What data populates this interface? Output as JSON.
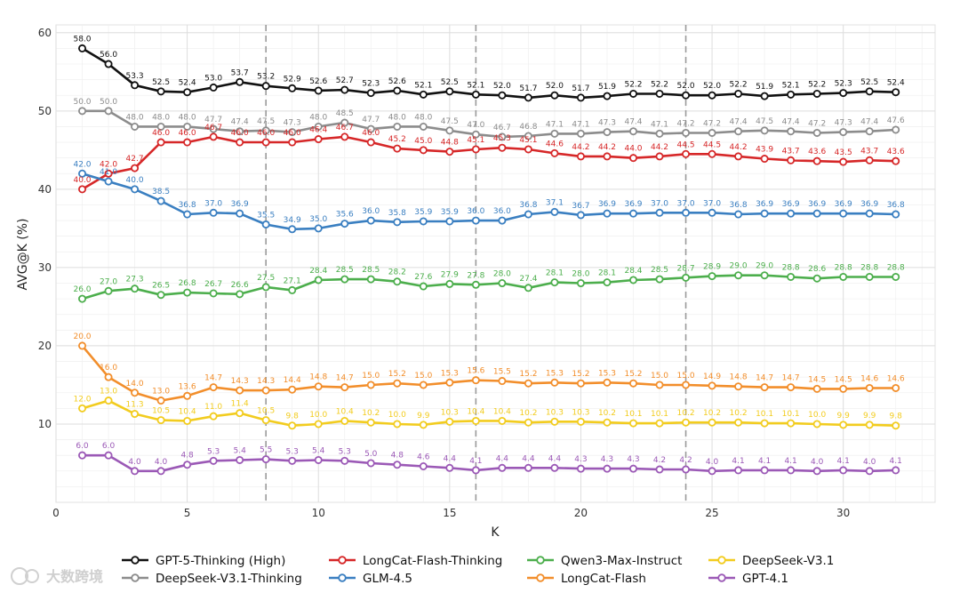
{
  "chart_data": {
    "type": "line",
    "title": "",
    "xlabel": "K",
    "ylabel": "AVG@K (%)",
    "xlim": [
      0,
      33.5
    ],
    "ylim": [
      0,
      61
    ],
    "xticks": [
      0,
      5,
      10,
      15,
      20,
      25,
      30
    ],
    "yticks": [
      10,
      20,
      30,
      40,
      50,
      60
    ],
    "vlines": [
      8,
      16,
      24
    ],
    "grid": true,
    "legend_position": "bottom",
    "x": [
      1,
      2,
      3,
      4,
      5,
      6,
      7,
      8,
      9,
      10,
      11,
      12,
      13,
      14,
      15,
      16,
      17,
      18,
      19,
      20,
      21,
      22,
      23,
      24,
      25,
      26,
      27,
      28,
      29,
      30,
      31,
      32
    ],
    "series": [
      {
        "name": "GPT-5-Thinking (High)",
        "color": "#111111",
        "values": [
          58.0,
          56.0,
          53.3,
          52.5,
          52.4,
          53.0,
          53.7,
          53.2,
          52.9,
          52.6,
          52.7,
          52.3,
          52.6,
          52.1,
          52.5,
          52.1,
          52.0,
          51.7,
          52.0,
          51.7,
          51.9,
          52.2,
          52.2,
          52.0,
          52.0,
          52.2,
          51.9,
          52.1,
          52.2,
          52.3,
          52.5,
          52.4
        ]
      },
      {
        "name": "DeepSeek-V3.1-Thinking",
        "color": "#8c8c8c",
        "values": [
          50.0,
          50.0,
          48.0,
          48.0,
          48.0,
          47.7,
          47.4,
          47.5,
          47.3,
          48.0,
          48.5,
          47.7,
          48.0,
          48.0,
          47.5,
          47.0,
          46.7,
          46.8,
          47.1,
          47.1,
          47.3,
          47.4,
          47.1,
          47.2,
          47.2,
          47.4,
          47.5,
          47.4,
          47.2,
          47.3,
          47.4,
          47.6
        ]
      },
      {
        "name": "LongCat-Flash-Thinking",
        "color": "#d62728",
        "values": [
          40.0,
          42.0,
          42.7,
          46.0,
          46.0,
          46.7,
          46.0,
          46.0,
          46.0,
          46.4,
          46.7,
          46.0,
          45.2,
          45.0,
          44.8,
          45.1,
          45.3,
          45.1,
          44.6,
          44.2,
          44.2,
          44.0,
          44.2,
          44.5,
          44.5,
          44.2,
          43.9,
          43.7,
          43.6,
          43.5,
          43.7,
          43.6
        ]
      },
      {
        "name": "GLM-4.5",
        "color": "#3a7fc1",
        "values": [
          42.0,
          41.0,
          40.0,
          38.5,
          36.8,
          37.0,
          36.9,
          35.5,
          34.9,
          35.0,
          35.6,
          36.0,
          35.8,
          35.9,
          35.9,
          36.0,
          36.0,
          36.8,
          37.1,
          36.7,
          36.9,
          36.9,
          37.0,
          37.0,
          37.0,
          36.8,
          36.9,
          36.9,
          36.9,
          36.9,
          36.9,
          36.8
        ]
      },
      {
        "name": "Qwen3-Max-Instruct",
        "color": "#4cae4c",
        "values": [
          26.0,
          27.0,
          27.3,
          26.5,
          26.8,
          26.7,
          26.6,
          27.5,
          27.1,
          28.4,
          28.5,
          28.5,
          28.2,
          27.6,
          27.9,
          27.8,
          28.0,
          27.4,
          28.1,
          28.0,
          28.1,
          28.4,
          28.5,
          28.7,
          28.9,
          29.0,
          29.0,
          28.8,
          28.6,
          28.8,
          28.8,
          28.8
        ]
      },
      {
        "name": "LongCat-Flash",
        "color": "#f28e2b",
        "values": [
          20.0,
          16.0,
          14.0,
          13.0,
          13.6,
          14.7,
          14.3,
          14.3,
          14.4,
          14.8,
          14.7,
          15.0,
          15.2,
          15.0,
          15.3,
          15.6,
          15.5,
          15.2,
          15.3,
          15.2,
          15.3,
          15.2,
          15.0,
          15.0,
          14.9,
          14.8,
          14.7,
          14.7,
          14.5,
          14.5,
          14.6,
          14.6
        ]
      },
      {
        "name": "DeepSeek-V3.1",
        "color": "#f2cc1f",
        "values": [
          12.0,
          13.0,
          11.3,
          10.5,
          10.4,
          11.0,
          11.4,
          10.5,
          9.8,
          10.0,
          10.4,
          10.2,
          10.0,
          9.9,
          10.3,
          10.4,
          10.4,
          10.2,
          10.3,
          10.3,
          10.2,
          10.1,
          10.1,
          10.2,
          10.2,
          10.2,
          10.1,
          10.1,
          10.0,
          9.9,
          9.9,
          9.8
        ]
      },
      {
        "name": "GPT-4.1",
        "color": "#9b59b6",
        "values": [
          6.0,
          6.0,
          4.0,
          4.0,
          4.8,
          5.3,
          5.4,
          5.5,
          5.3,
          5.4,
          5.3,
          5.0,
          4.8,
          4.6,
          4.4,
          4.1,
          4.4,
          4.4,
          4.4,
          4.3,
          4.3,
          4.3,
          4.2,
          4.2,
          4.0,
          4.1,
          4.1,
          4.1,
          4.0,
          4.1,
          4.0,
          4.1
        ]
      }
    ]
  },
  "legend_order": [
    0,
    2,
    4,
    6,
    1,
    3,
    5,
    7
  ],
  "watermark": "大数跨境"
}
